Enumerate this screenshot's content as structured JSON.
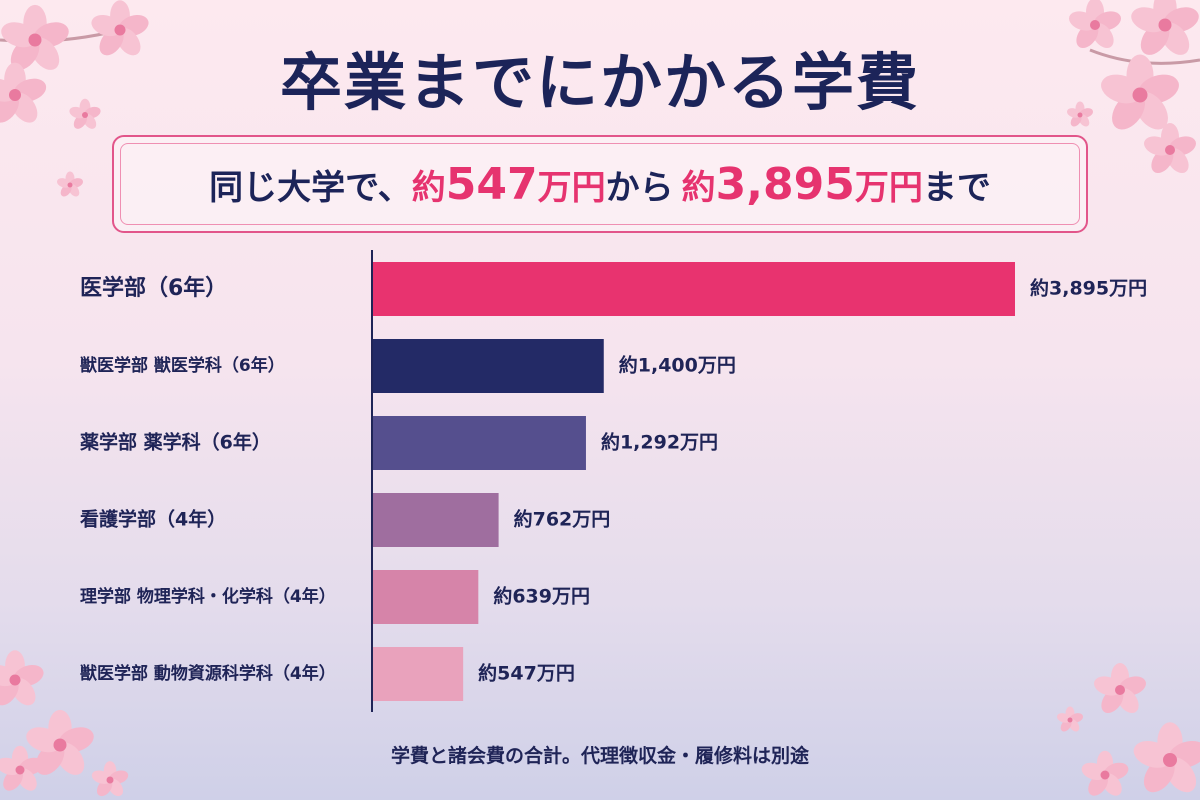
{
  "title": "卒業までにかかる学費",
  "subtitle": {
    "prefix": "同じ大学で、",
    "approx1": "約",
    "low_value": "547",
    "unit1": "万円",
    "middle": "から",
    "approx2": "約",
    "high_value": "3,895",
    "unit2": "万円",
    "suffix": "まで"
  },
  "colors": {
    "accent": "#e6336f",
    "navy": "#1c2459",
    "bars": [
      "#e8336f",
      "#232a66",
      "#554f8e",
      "#9f6e9f",
      "#d684a9",
      "#e9a2bc"
    ]
  },
  "chart_data": {
    "type": "bar",
    "orientation": "horizontal",
    "categories": [
      "医学部（6年）",
      "獣医学部 獣医学科（6年）",
      "薬学部 薬学科（6年）",
      "看護学部（4年）",
      "理学部 物理学科・化学科（4年）",
      "獣医学部 動物資源科学科（4年）"
    ],
    "values": [
      3895,
      1400,
      1292,
      762,
      639,
      547
    ],
    "value_labels": [
      "約3,895万円",
      "約1,400万円",
      "約1,292万円",
      "約762万円",
      "約639万円",
      "約547万円"
    ],
    "unit": "万円",
    "xlim": [
      0,
      3895
    ],
    "grid": false,
    "legend": "none"
  },
  "footnote": "学費と諸会費の合計。代理徴収金・履修料は別途"
}
